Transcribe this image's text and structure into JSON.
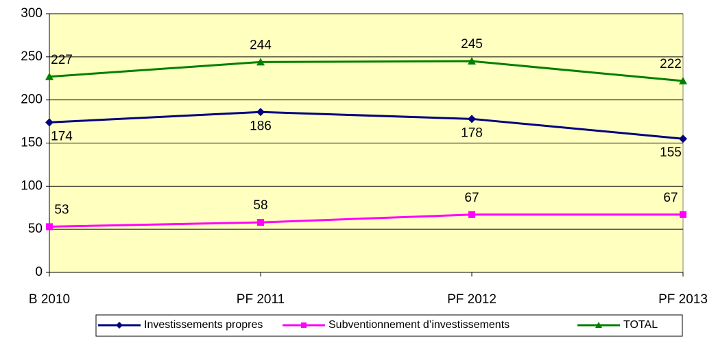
{
  "chart_data": {
    "type": "line",
    "categories": [
      "B 2010",
      "PF 2011",
      "PF 2012",
      "PF 2013"
    ],
    "series": [
      {
        "name": "Investissements propres",
        "color": "#000080",
        "marker": "diamond",
        "values": [
          174,
          186,
          178,
          155
        ]
      },
      {
        "name": "Subventionnement d’investissements",
        "color": "#ff00ff",
        "marker": "square",
        "values": [
          53,
          58,
          67,
          67
        ]
      },
      {
        "name": "TOTAL",
        "color": "#008000",
        "marker": "triangle",
        "values": [
          227,
          244,
          245,
          222
        ]
      }
    ],
    "ylim": [
      0,
      300
    ],
    "yticks": [
      0,
      50,
      100,
      150,
      200,
      250,
      300
    ],
    "grid": true,
    "plot_background": "#ffffc0",
    "legend": "bottom"
  }
}
